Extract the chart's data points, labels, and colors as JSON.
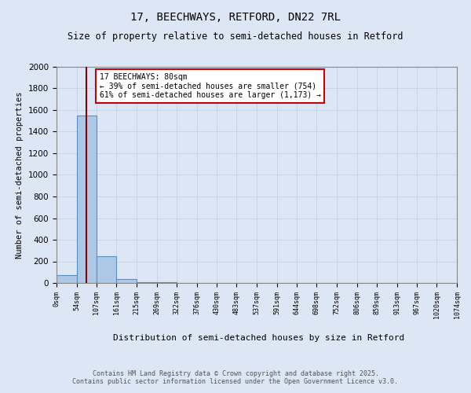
{
  "title": "17, BEECHWAYS, RETFORD, DN22 7RL",
  "subtitle": "Size of property relative to semi-detached houses in Retford",
  "xlabel": "Distribution of semi-detached houses by size in Retford",
  "ylabel": "Number of semi-detached properties",
  "bin_edges": [
    0,
    54,
    107,
    161,
    215,
    269,
    322,
    376,
    430,
    483,
    537,
    591,
    644,
    698,
    752,
    806,
    859,
    913,
    967,
    1020,
    1074
  ],
  "bar_heights": [
    75,
    1550,
    245,
    35,
    10,
    5,
    3,
    2,
    1,
    1,
    0,
    1,
    0,
    0,
    0,
    0,
    0,
    0,
    0,
    0
  ],
  "bar_color": "#adc8e6",
  "bar_edgecolor": "#5a8fc0",
  "bar_linewidth": 0.8,
  "property_line_x": 80,
  "property_line_color": "#8b0000",
  "ylim": [
    0,
    2000
  ],
  "yticks": [
    0,
    200,
    400,
    600,
    800,
    1000,
    1200,
    1400,
    1600,
    1800,
    2000
  ],
  "annotation_text": "17 BEECHWAYS: 80sqm\n← 39% of semi-detached houses are smaller (754)\n61% of semi-detached houses are larger (1,173) →",
  "annotation_box_color": "#ffffff",
  "annotation_box_edgecolor": "#cc0000",
  "grid_color": "#c8d4e8",
  "background_color": "#dce6f5",
  "footer_text": "Contains HM Land Registry data © Crown copyright and database right 2025.\nContains public sector information licensed under the Open Government Licence v3.0.",
  "title_fontsize": 10,
  "subtitle_fontsize": 8.5,
  "tick_fontsize": 6,
  "ylabel_fontsize": 7.5,
  "xlabel_fontsize": 8,
  "annotation_fontsize": 7,
  "footer_fontsize": 6
}
